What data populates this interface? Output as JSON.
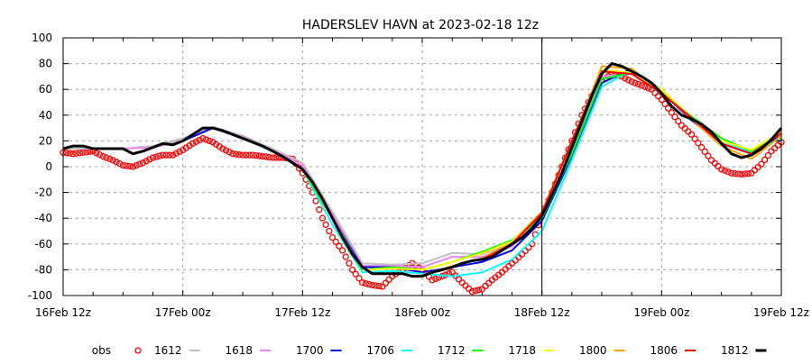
{
  "chart_data": {
    "type": "line",
    "title": "HADERSLEV HAVN at 2023-02-18 12z",
    "xlabel": "",
    "ylabel": "",
    "x_unit": "hours since 16Feb 12z",
    "xlim": [
      0,
      72
    ],
    "ylim": [
      -100,
      100
    ],
    "grid": true,
    "legend_placement": "bottom",
    "current_time_marker_hour": 48,
    "x_ticks": [
      {
        "hour": 0,
        "label": "16Feb 12z"
      },
      {
        "hour": 12,
        "label": "17Feb 00z"
      },
      {
        "hour": 24,
        "label": "17Feb 12z"
      },
      {
        "hour": 36,
        "label": "18Feb 00z"
      },
      {
        "hour": 48,
        "label": "18Feb 12z"
      },
      {
        "hour": 60,
        "label": "19Feb 00z"
      },
      {
        "hour": 72,
        "label": "19Feb 12z"
      }
    ],
    "y_ticks": [
      100,
      80,
      60,
      40,
      20,
      0,
      -20,
      -40,
      -60,
      -80,
      -100
    ],
    "obs": {
      "name": "obs",
      "color": "#ff0000",
      "start_hour": 0,
      "step": 1,
      "values": [
        11,
        10,
        11,
        12,
        8,
        5,
        1,
        0,
        3,
        7,
        9,
        9,
        13,
        18,
        22,
        19,
        14,
        10,
        9,
        9,
        8,
        7,
        7,
        6,
        -5,
        -20,
        -40,
        -55,
        -65,
        -80,
        -90,
        -92,
        -93,
        -85,
        -80,
        -75,
        -80,
        -88,
        -85,
        -82,
        -90,
        -97,
        -95,
        -88,
        -82,
        -75,
        -68,
        -60,
        -38,
        -20,
        0,
        20,
        40,
        55,
        67,
        72,
        70,
        66,
        63,
        60,
        52,
        42,
        32,
        25,
        15,
        5,
        -2,
        -5,
        -6,
        -5,
        2,
        12,
        19
      ]
    },
    "series": [
      {
        "name": "1612",
        "color": "#c0c0c0",
        "start_hour": 0,
        "step": 3,
        "values": [
          14,
          14,
          14,
          16,
          22,
          31,
          24,
          14,
          3,
          -35,
          -75,
          -76,
          -75,
          -67,
          -68,
          -60,
          -38,
          10,
          70,
          72,
          58,
          38,
          20,
          12,
          25
        ]
      },
      {
        "name": "1618",
        "color": "#ee82ee",
        "start_hour": 6,
        "step": 3,
        "values": [
          14,
          15,
          20,
          30,
          23,
          13,
          1,
          -37,
          -77,
          -77,
          -78,
          -70,
          -70,
          -62,
          -40,
          12,
          70,
          72,
          57,
          38,
          20,
          12,
          26
        ]
      },
      {
        "name": "1700",
        "color": "#0000ff",
        "start_hour": 12,
        "step": 3,
        "values": [
          20,
          30,
          22,
          12,
          -2,
          -40,
          -78,
          -78,
          -82,
          -78,
          -74,
          -65,
          -42,
          8,
          65,
          76,
          58,
          36,
          18,
          10,
          24
        ]
      },
      {
        "name": "1706",
        "color": "#00ffff",
        "start_hour": 18,
        "step": 3,
        "values": [
          22,
          12,
          -2,
          -45,
          -82,
          -81,
          -83,
          -85,
          -82,
          -72,
          -50,
          5,
          62,
          75,
          60,
          38,
          20,
          11,
          22
        ]
      },
      {
        "name": "1712",
        "color": "#00ff00",
        "start_hour": 24,
        "step": 3,
        "values": [
          -2,
          -40,
          -80,
          -78,
          -80,
          -74,
          -66,
          -57,
          -40,
          10,
          68,
          73,
          58,
          39,
          22,
          12,
          26
        ]
      },
      {
        "name": "1718",
        "color": "#ffff00",
        "start_hour": 30,
        "step": 3,
        "values": [
          -80,
          -79,
          -80,
          -74,
          -67,
          -58,
          -35,
          20,
          75,
          73,
          60,
          38,
          20,
          13,
          27
        ]
      },
      {
        "name": "1800",
        "color": "#ffa500",
        "start_hour": 36,
        "step": 3,
        "values": [
          -84,
          -77,
          -71,
          -59,
          -35,
          18,
          78,
          76,
          58,
          37,
          16,
          6,
          24
        ]
      },
      {
        "name": "1806",
        "color": "#ff0000",
        "start_hour": 42,
        "step": 3,
        "values": [
          -72,
          -60,
          -36,
          20,
          74,
          72,
          57,
          38,
          18,
          10,
          26
        ]
      },
      {
        "name": "1812",
        "color": "#000000",
        "start_hour": 0,
        "step": 1,
        "values": [
          14,
          16,
          16,
          14,
          14,
          14,
          14,
          10,
          12,
          15,
          18,
          17,
          20,
          25,
          30,
          30,
          28,
          25,
          22,
          19,
          16,
          12,
          8,
          3,
          -2,
          -12,
          -25,
          -40,
          -55,
          -68,
          -78,
          -83,
          -83,
          -83,
          -83,
          -85,
          -85,
          -82,
          -80,
          -78,
          -75,
          -73,
          -72,
          -70,
          -65,
          -60,
          -55,
          -48,
          -38,
          -22,
          -5,
          15,
          35,
          55,
          72,
          80,
          78,
          74,
          70,
          65,
          57,
          47,
          40,
          37,
          33,
          27,
          18,
          10,
          7,
          9,
          14,
          21,
          30
        ]
      }
    ]
  }
}
